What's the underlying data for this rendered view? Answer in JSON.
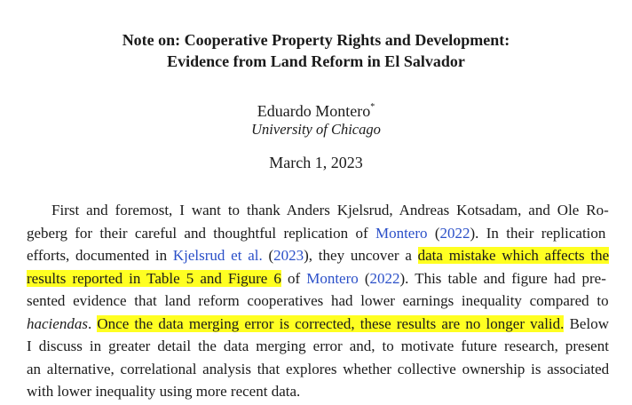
{
  "title": {
    "line1": "Note on: Cooperative Property Rights and Development:",
    "line2": "Evidence from Land Reform in El Salvador"
  },
  "author": {
    "name": "Eduardo Montero",
    "mark": "*"
  },
  "affiliation": "University of Chicago",
  "date": "March 1, 2023",
  "highlight_color": "#ffff22",
  "link_color": "#2a4fc8",
  "body": {
    "l1": "First and foremost, I want to thank Anders Kjelsrud, Andreas Kotsadam, and Ole Ro-",
    "l2a": "geberg for their careful and thoughtful replication of ",
    "l2ref": "Montero",
    "l2b": " (",
    "l2year": "2022",
    "l2c": ").  In their replication",
    "l3a": "efforts, documented in ",
    "l3ref": "Kjelsrud et al.",
    "l3b": " (",
    "l3year": "2023",
    "l3c": "), they uncover a ",
    "l3hl": "data mistake which affects the",
    "l4hl": "results reported in Table 5 and Figure 6",
    "l4a": " of ",
    "l4ref": "Montero",
    "l4b": " (",
    "l4year": "2022",
    "l4c": ").  This table and figure had pre-",
    "l5": "sented evidence that land reform cooperatives had lower earnings inequality compared to",
    "l6em": "haciendas",
    "l6a": ". ",
    "l6hl": "Once the data merging error is corrected, these results are no longer valid.",
    "l6b": " Below",
    "l7": "I discuss in greater detail the data merging error and, to motivate future research, present",
    "l8": "an alternative, correlational analysis that explores whether collective ownership is associated",
    "l9": "with lower inequality using more recent data."
  }
}
